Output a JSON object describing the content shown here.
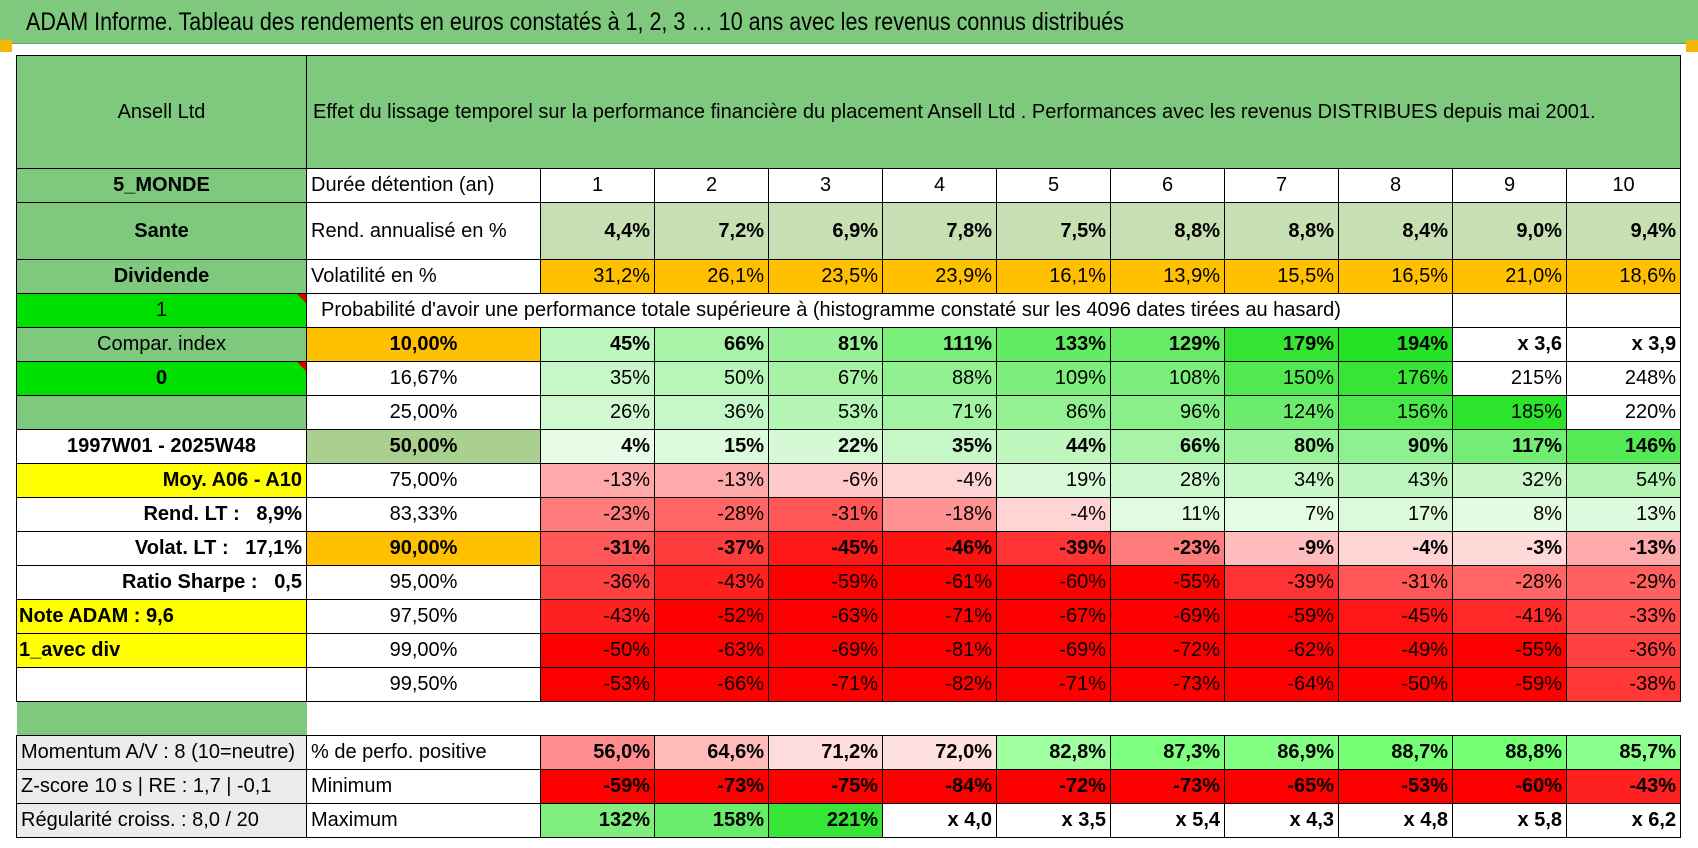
{
  "title": "ADAM Informe. Tableau des rendements en euros constatés à 1, 2, 3 … 10 ans avec les revenus connus distribués",
  "header": {
    "asset": "Ansell Ltd",
    "description": "Effet du lissage temporel sur la performance financière du placement Ansell Ltd . Performances avec les revenus DISTRIBUES depuis mai 2001."
  },
  "left_panel": {
    "region": "5_MONDE",
    "sector": "Sante",
    "type": "Dividende",
    "flag1": "1",
    "compar_index": "Compar. index",
    "flag0": "0",
    "period": "1997W01 - 2025W48",
    "moy": "Moy. A06 - A10",
    "rend_lt_label": "Rend. LT :",
    "rend_lt_value": "8,9%",
    "volat_lt_label": "Volat. LT :",
    "volat_lt_value": "17,1%",
    "sharpe_label": "Ratio Sharpe :",
    "sharpe_value": "0,5",
    "note": "Note ADAM : 9,6",
    "div": "1_avec div"
  },
  "labels": {
    "duree": "Durée détention (an)",
    "rend": "Rend. annualisé en %",
    "volat": "Volatilité en %",
    "proba": "Probabilité d'avoir une performance totale supérieure à (histogramme constaté sur les 4096 dates tirées au hasard)",
    "pos": "% de perfo. positive",
    "min": "Minimum",
    "max": "Maximum"
  },
  "years": [
    "1",
    "2",
    "3",
    "4",
    "5",
    "6",
    "7",
    "8",
    "9",
    "10"
  ],
  "rend_values": [
    "4,4%",
    "7,2%",
    "6,9%",
    "7,8%",
    "7,5%",
    "8,8%",
    "8,8%",
    "8,4%",
    "9,0%",
    "9,4%"
  ],
  "volat_values": [
    "31,2%",
    "26,1%",
    "23,5%",
    "23,9%",
    "16,1%",
    "13,9%",
    "15,5%",
    "16,5%",
    "21,0%",
    "18,6%"
  ],
  "prob_rows": [
    {
      "p": "10,00%",
      "v": [
        "45%",
        "66%",
        "81%",
        "111%",
        "133%",
        "129%",
        "179%",
        "194%",
        "x 3,6",
        "x 3,9"
      ]
    },
    {
      "p": "16,67%",
      "v": [
        "35%",
        "50%",
        "67%",
        "88%",
        "109%",
        "108%",
        "150%",
        "176%",
        "215%",
        "248%"
      ]
    },
    {
      "p": "25,00%",
      "v": [
        "26%",
        "36%",
        "53%",
        "71%",
        "86%",
        "96%",
        "124%",
        "156%",
        "185%",
        "220%"
      ]
    },
    {
      "p": "50,00%",
      "v": [
        "4%",
        "15%",
        "22%",
        "35%",
        "44%",
        "66%",
        "80%",
        "90%",
        "117%",
        "146%"
      ]
    },
    {
      "p": "75,00%",
      "v": [
        "-13%",
        "-13%",
        "-6%",
        "-4%",
        "19%",
        "28%",
        "34%",
        "43%",
        "32%",
        "54%"
      ]
    },
    {
      "p": "83,33%",
      "v": [
        "-23%",
        "-28%",
        "-31%",
        "-18%",
        "-4%",
        "11%",
        "7%",
        "17%",
        "8%",
        "13%"
      ]
    },
    {
      "p": "90,00%",
      "v": [
        "-31%",
        "-37%",
        "-45%",
        "-46%",
        "-39%",
        "-23%",
        "-9%",
        "-4%",
        "-3%",
        "-13%"
      ]
    },
    {
      "p": "95,00%",
      "v": [
        "-36%",
        "-43%",
        "-59%",
        "-61%",
        "-60%",
        "-55%",
        "-39%",
        "-31%",
        "-28%",
        "-29%"
      ]
    },
    {
      "p": "97,50%",
      "v": [
        "-43%",
        "-52%",
        "-63%",
        "-71%",
        "-67%",
        "-69%",
        "-59%",
        "-45%",
        "-41%",
        "-33%"
      ]
    },
    {
      "p": "99,00%",
      "v": [
        "-50%",
        "-63%",
        "-69%",
        "-81%",
        "-69%",
        "-72%",
        "-62%",
        "-49%",
        "-55%",
        "-36%"
      ]
    },
    {
      "p": "99,50%",
      "v": [
        "-53%",
        "-66%",
        "-71%",
        "-82%",
        "-71%",
        "-73%",
        "-64%",
        "-50%",
        "-59%",
        "-38%"
      ]
    }
  ],
  "bottom": {
    "momentum": "Momentum A/V : 8 (10=neutre)",
    "zscore": "Z-score 10 s | RE : 1,7 | -0,1",
    "regul": "Régularité croiss. : 8,0 / 20",
    "pos_values": [
      "56,0%",
      "64,6%",
      "71,2%",
      "72,0%",
      "82,8%",
      "87,3%",
      "86,9%",
      "88,7%",
      "88,8%",
      "85,7%"
    ],
    "min_values": [
      "-59%",
      "-73%",
      "-75%",
      "-84%",
      "-72%",
      "-73%",
      "-65%",
      "-53%",
      "-60%",
      "-43%"
    ],
    "max_values": [
      "132%",
      "158%",
      "221%",
      "x 4,0",
      "x 3,5",
      "x 5,4",
      "x 4,3",
      "x 4,8",
      "x 5,8",
      "x 6,2"
    ]
  },
  "colors": {
    "header_green": "#7fc97f",
    "rend_green": "#c6e0b4",
    "volat_orange": "#ffc000",
    "bright_green": "#00e000",
    "yellow": "#ffff00",
    "red": "#ff0000"
  }
}
